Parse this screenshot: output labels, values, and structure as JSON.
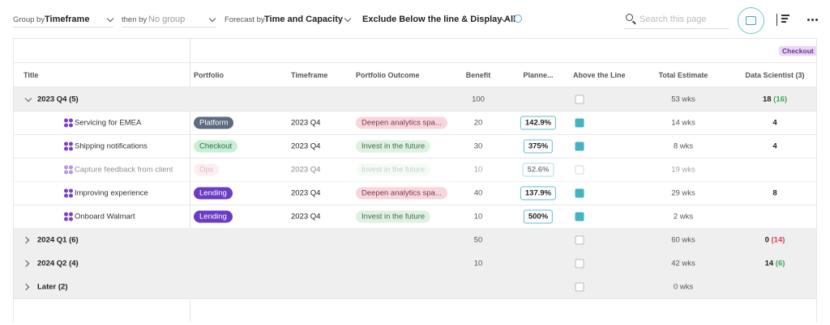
{
  "toolbar": {
    "group_by_label": "Group by",
    "group_by_value": "Timeframe",
    "then_by_label": "then by",
    "then_by_value": "No group",
    "forecast_label": "Forecast by",
    "forecast_value": "Time and Capacity",
    "filter_value": "Exclude Below the line & Display All",
    "search_placeholder": "Search this page"
  },
  "table": {
    "tag": "Checkout",
    "columns": [
      "Title",
      "Portfolio",
      "Timeframe",
      "Portfolio Outcome",
      "Benefit",
      "Planne...",
      "Above the Line",
      "Total Estimate",
      "Data Scientist (3)"
    ],
    "groups": [
      {
        "name": "2023 Q4 (5)",
        "expanded": true,
        "benefit": 100,
        "above": false,
        "estimate": "53 wks",
        "ds_total": 18,
        "ds_delta": "(16)",
        "ds_delta_color": "#3aa75a",
        "items": [
          {
            "title": "Servicing for EMEA",
            "portfolio": "Platform",
            "portfolio_bg": "#5d6b82",
            "portfolio_fg": "#ffffff",
            "timeframe": "2023 Q4",
            "outcome": "Deepen analytics spa...",
            "outcome_bg": "#f8d6de",
            "outcome_fg": "#7a3a46",
            "benefit": 20,
            "planned": "142.9%",
            "above": true,
            "estimate": "14 wks",
            "ds": 4,
            "dim": false
          },
          {
            "title": "Shipping notifications",
            "portfolio": "Checkout",
            "portfolio_bg": "#c8efd5",
            "portfolio_fg": "#2c6b41",
            "timeframe": "2023 Q4",
            "outcome": "Invest in the future",
            "outcome_bg": "#dff2e2",
            "outcome_fg": "#3d6b47",
            "benefit": 30,
            "planned": "375%",
            "above": true,
            "estimate": "8 wks",
            "ds": 4,
            "dim": false
          },
          {
            "title": "Capture feedback from client",
            "portfolio": "Ops",
            "portfolio_bg": "#fbe1e6",
            "portfolio_fg": "#c7808c",
            "timeframe": "2023 Q4",
            "outcome": "Invest in the future",
            "outcome_bg": "#eef8ef",
            "outcome_fg": "#8fae95",
            "benefit": 10,
            "planned": "52.6%",
            "above": false,
            "estimate": "19 wks",
            "ds": null,
            "dim": true
          },
          {
            "title": "Improving experience",
            "portfolio": "Lending",
            "portfolio_bg": "#6a3bc4",
            "portfolio_fg": "#ffffff",
            "timeframe": "2023 Q4",
            "outcome": "Deepen analytics spa...",
            "outcome_bg": "#f8d6de",
            "outcome_fg": "#7a3a46",
            "benefit": 40,
            "planned": "137.9%",
            "above": true,
            "estimate": "29 wks",
            "ds": 8,
            "dim": false
          },
          {
            "title": "Onboard Walmart",
            "portfolio": "Lending",
            "portfolio_bg": "#6a3bc4",
            "portfolio_fg": "#ffffff",
            "timeframe": "2023 Q4",
            "outcome": "Invest in the future",
            "outcome_bg": "#dff2e2",
            "outcome_fg": "#3d6b47",
            "benefit": 10,
            "planned": "500%",
            "above": true,
            "estimate": "2 wks",
            "ds": null,
            "dim": false
          }
        ]
      },
      {
        "name": "2024 Q1 (6)",
        "expanded": false,
        "benefit": 50,
        "above": false,
        "estimate": "60 wks",
        "ds_total": 0,
        "ds_delta": "(14)",
        "ds_delta_color": "#d9404a",
        "items": []
      },
      {
        "name": "2024 Q2 (4)",
        "expanded": false,
        "benefit": 10,
        "above": false,
        "estimate": "42 wks",
        "ds_total": 14,
        "ds_delta": "(6)",
        "ds_delta_color": "#3aa75a",
        "items": []
      },
      {
        "name": "Later (2)",
        "expanded": false,
        "benefit": null,
        "above": false,
        "estimate": "0 wks",
        "ds_total": null,
        "ds_delta": null,
        "ds_delta_color": null,
        "items": []
      }
    ]
  }
}
